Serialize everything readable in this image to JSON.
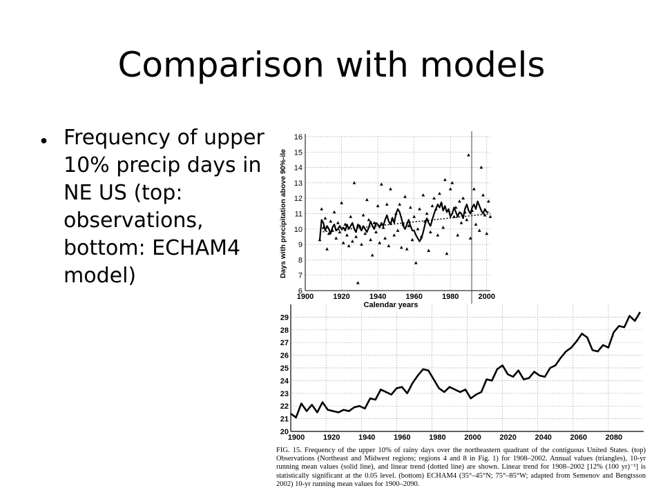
{
  "slide": {
    "title": "Comparison with models",
    "bullet": "Frequency of upper 10% precip days in NE US (top: observations, bottom: ECHAM4 model)"
  },
  "figure": {
    "caption": "FIG. 15. Frequency of the upper 10% of rainy days over the northeastern quadrant of the contiguous United States. (top) Observations (Northeast and Midwest regions; regions 4 and 8 in Fig. 1) for 1908–2002. Annual values (triangles), 10-yr running mean values (solid line), and linear trend (dotted line) are shown. Linear trend for 1908–2002 [12% (100 yr)⁻¹] is statistically significant at the 0.05 level. (bottom) ECHAM4 (35°–45°N; 75°–85°W; adapted from Semenov and Bengtsson 2002) 10-yr running mean values for 1900–2090."
  },
  "chart_data": [
    {
      "type": "scatter",
      "xlabel": "Calendar years",
      "ylabel": "Days with precipitation above 90%-ile",
      "xlim": [
        1900,
        2002
      ],
      "ylim": [
        6,
        16
      ],
      "grid": true,
      "x_ticks": [
        1900,
        1920,
        1940,
        1960,
        1980,
        2000
      ],
      "y_ticks": [
        6,
        7,
        8,
        9,
        10,
        11,
        12,
        13,
        14,
        15,
        16
      ],
      "colors": {
        "marks": "#000000",
        "grid": "#9a9a9a"
      },
      "series": [
        {
          "style": "triangles",
          "x": [
            1908,
            1909,
            1910,
            1911,
            1912,
            1913,
            1914,
            1915,
            1916,
            1917,
            1918,
            1919,
            1920,
            1921,
            1922,
            1923,
            1924,
            1925,
            1926,
            1927,
            1928,
            1929,
            1930,
            1931,
            1932,
            1933,
            1934,
            1935,
            1936,
            1937,
            1938,
            1939,
            1940,
            1941,
            1942,
            1943,
            1944,
            1945,
            1946,
            1947,
            1948,
            1949,
            1950,
            1951,
            1952,
            1953,
            1954,
            1955,
            1956,
            1957,
            1958,
            1959,
            1960,
            1961,
            1962,
            1963,
            1964,
            1965,
            1966,
            1967,
            1968,
            1969,
            1970,
            1971,
            1972,
            1973,
            1974,
            1975,
            1976,
            1977,
            1978,
            1979,
            1980,
            1981,
            1982,
            1983,
            1984,
            1985,
            1986,
            1987,
            1988,
            1989,
            1990,
            1991,
            1992,
            1993,
            1994,
            1995,
            1996,
            1997,
            1998,
            1999,
            2000,
            2001,
            2002
          ],
          "y": [
            9.3,
            11.3,
            10.1,
            10.7,
            8.7,
            9.7,
            10.5,
            9.9,
            11.1,
            9.4,
            10.4,
            9.8,
            11.7,
            9.1,
            10.3,
            9.6,
            8.9,
            10.8,
            9.2,
            13.0,
            9.5,
            6.5,
            10.2,
            9.0,
            10.9,
            9.7,
            11.9,
            10.6,
            9.3,
            8.3,
            10.4,
            9.8,
            11.5,
            9.1,
            12.9,
            10.1,
            9.4,
            11.6,
            8.9,
            12.6,
            10.7,
            9.6,
            11.0,
            9.9,
            11.6,
            8.8,
            10.3,
            12.1,
            8.7,
            10.2,
            11.4,
            9.3,
            10.8,
            7.8,
            10.0,
            11.3,
            9.5,
            12.2,
            10.5,
            11.0,
            8.6,
            9.8,
            11.5,
            12.0,
            11.3,
            9.6,
            12.3,
            11.7,
            10.1,
            13.2,
            8.4,
            11.2,
            12.6,
            13.0,
            10.8,
            11.4,
            9.6,
            11.8,
            10.4,
            12.0,
            11.1,
            10.6,
            14.8,
            9.4,
            11.2,
            12.6,
            10.3,
            11.7,
            9.9,
            14.0,
            12.2,
            10.9,
            9.7,
            11.8,
            10.8
          ]
        },
        {
          "style": "solid",
          "x": [
            1908,
            1909,
            1910,
            1911,
            1912,
            1913,
            1914,
            1915,
            1916,
            1917,
            1918,
            1919,
            1920,
            1921,
            1922,
            1923,
            1924,
            1925,
            1926,
            1927,
            1928,
            1929,
            1930,
            1931,
            1932,
            1933,
            1934,
            1935,
            1936,
            1937,
            1938,
            1939,
            1940,
            1941,
            1942,
            1943,
            1944,
            1945,
            1946,
            1947,
            1948,
            1949,
            1950,
            1951,
            1952,
            1953,
            1954,
            1955,
            1956,
            1957,
            1958,
            1959,
            1960,
            1961,
            1962,
            1963,
            1964,
            1965,
            1966,
            1967,
            1968,
            1969,
            1970,
            1971,
            1972,
            1973,
            1974,
            1975,
            1976,
            1977,
            1978,
            1979,
            1980,
            1981,
            1982,
            1983,
            1984,
            1985,
            1986,
            1987,
            1988,
            1989,
            1990,
            1991,
            1992,
            1993,
            1994,
            1995,
            1996,
            1997,
            1998,
            1999,
            2000,
            2001
          ],
          "y": [
            9.3,
            10.6,
            10.4,
            9.9,
            10.2,
            10.0,
            9.7,
            10.1,
            10.3,
            9.9,
            10.0,
            10.2,
            10.0,
            10.1,
            9.9,
            10.3,
            10.0,
            10.2,
            10.4,
            10.0,
            9.8,
            10.3,
            10.1,
            9.9,
            10.2,
            10.0,
            9.8,
            10.1,
            10.5,
            10.2,
            10.0,
            10.4,
            10.3,
            10.1,
            10.4,
            10.2,
            10.6,
            10.9,
            10.5,
            10.3,
            10.7,
            10.4,
            11.0,
            11.3,
            11.1,
            10.7,
            10.2,
            10.0,
            10.3,
            10.6,
            10.2,
            9.9,
            9.9,
            9.6,
            9.4,
            9.2,
            9.4,
            9.8,
            10.3,
            10.7,
            10.4,
            10.2,
            10.6,
            11.0,
            11.3,
            11.6,
            11.4,
            11.7,
            11.2,
            11.5,
            11.1,
            11.3,
            10.8,
            11.0,
            11.4,
            11.1,
            10.8,
            11.1,
            11.0,
            10.7,
            11.3,
            11.6,
            11.2,
            11.0,
            11.4,
            11.6,
            11.3,
            11.8,
            11.5,
            11.2,
            11.0,
            11.3,
            11.1,
            11.1
          ]
        },
        {
          "style": "dotted",
          "x": [
            1908,
            2002
          ],
          "y": [
            9.8,
            11.0
          ]
        }
      ]
    },
    {
      "type": "line",
      "xlim": [
        1900,
        2100
      ],
      "ylim": [
        20,
        30
      ],
      "grid": true,
      "x_ticks": [
        1900,
        1920,
        1940,
        1960,
        1980,
        2000,
        2020,
        2040,
        2060,
        2080
      ],
      "y_ticks": [
        20,
        21,
        22,
        23,
        24,
        25,
        26,
        27,
        28,
        29
      ],
      "colors": {
        "line": "#000000",
        "grid": "#9a9a9a"
      },
      "series": [
        {
          "x": [
            1900,
            1903,
            1906,
            1909,
            1912,
            1915,
            1918,
            1921,
            1924,
            1927,
            1930,
            1933,
            1936,
            1939,
            1942,
            1945,
            1948,
            1951,
            1954,
            1957,
            1960,
            1963,
            1966,
            1969,
            1972,
            1975,
            1978,
            1981,
            1984,
            1987,
            1990,
            1993,
            1996,
            1999,
            2002,
            2005,
            2008,
            2011,
            2014,
            2017,
            2020,
            2023,
            2026,
            2029,
            2032,
            2035,
            2038,
            2041,
            2044,
            2047,
            2050,
            2053,
            2056,
            2059,
            2062,
            2065,
            2068,
            2071,
            2074,
            2077,
            2080,
            2083,
            2086,
            2089,
            2092,
            2095,
            2098
          ],
          "y": [
            21.4,
            21.1,
            22.2,
            21.6,
            22.1,
            21.5,
            22.3,
            21.7,
            21.6,
            21.5,
            21.7,
            21.6,
            21.9,
            22.0,
            21.8,
            22.6,
            22.5,
            23.3,
            23.1,
            22.9,
            23.4,
            23.5,
            23.0,
            23.8,
            24.4,
            24.9,
            24.8,
            24.1,
            23.4,
            23.1,
            23.5,
            23.3,
            23.1,
            23.3,
            22.6,
            22.9,
            23.1,
            24.1,
            24.0,
            24.9,
            25.2,
            24.5,
            24.3,
            24.8,
            24.1,
            24.2,
            24.7,
            24.4,
            24.3,
            25.0,
            25.2,
            25.8,
            26.3,
            26.6,
            27.1,
            27.7,
            27.4,
            26.4,
            26.3,
            26.8,
            26.6,
            27.8,
            28.3,
            28.2,
            29.1,
            28.7,
            29.4
          ]
        }
      ]
    }
  ]
}
